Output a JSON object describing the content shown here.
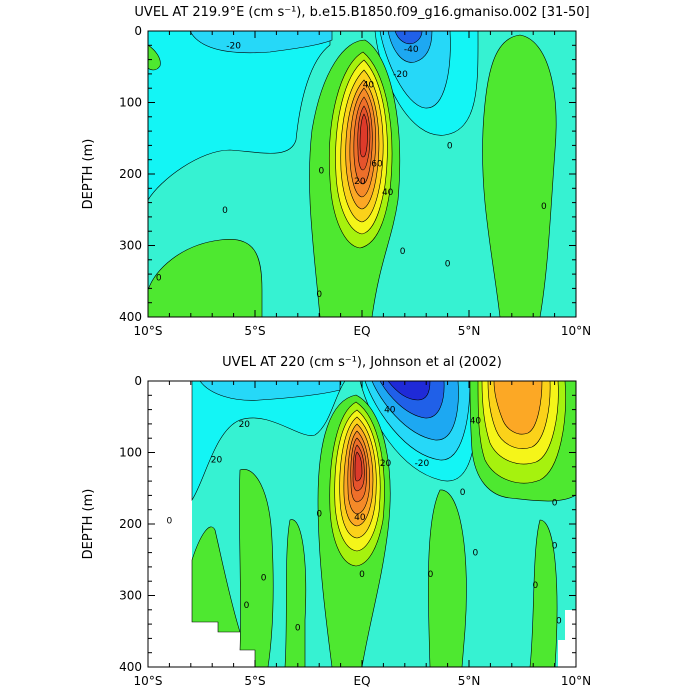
{
  "chart_data": [
    {
      "type": "contour",
      "title": "UVEL AT 219.9°E (cm s⁻¹), b.e15.B1850.f09_g16.gmaniso.002 [31-50]",
      "ylabel": "DEPTH (m)",
      "xlabel": "",
      "x_ticks": [
        "10°S",
        "5°S",
        "EQ",
        "5°N",
        "10°N"
      ],
      "y_ticks": [
        "0",
        "100",
        "200",
        "300",
        "400"
      ],
      "xlim": [
        -10,
        10
      ],
      "ylim": [
        0,
        400
      ],
      "y_inverted": true,
      "contour_interval": 10,
      "contour_labels": [
        {
          "text": "-20",
          "x": -6.0,
          "y": 20
        },
        {
          "text": "-20",
          "x": 1.8,
          "y": 60
        },
        {
          "text": "-40",
          "x": 2.3,
          "y": 25
        },
        {
          "text": "40",
          "x": 0.3,
          "y": 75
        },
        {
          "text": "60",
          "x": 0.7,
          "y": 185
        },
        {
          "text": "20",
          "x": -0.1,
          "y": 210
        },
        {
          "text": "40",
          "x": 1.2,
          "y": 225
        },
        {
          "text": "0",
          "x": -9.5,
          "y": 345
        },
        {
          "text": "0",
          "x": -6.4,
          "y": 250
        },
        {
          "text": "0",
          "x": -1.9,
          "y": 195
        },
        {
          "text": "0",
          "x": -2.0,
          "y": 368
        },
        {
          "text": "0",
          "x": 1.9,
          "y": 308
        },
        {
          "text": "0",
          "x": 4.1,
          "y": 160
        },
        {
          "text": "0",
          "x": 4.0,
          "y": 325
        },
        {
          "text": "0",
          "x": 8.5,
          "y": 245
        }
      ],
      "features": [
        {
          "kind": "max",
          "x": 0.0,
          "y": 125,
          "value": 90
        },
        {
          "kind": "min",
          "x": 2.1,
          "y": 0,
          "value": -50
        },
        {
          "kind": "max",
          "x": 7.5,
          "y": 80,
          "value": 15
        }
      ]
    },
    {
      "type": "contour",
      "title": "UVEL AT 220 (cm s⁻¹), Johnson et al (2002)",
      "ylabel": "DEPTH (m)",
      "xlabel": "",
      "x_ticks": [
        "10°S",
        "5°S",
        "EQ",
        "5°N",
        "10°N"
      ],
      "y_ticks": [
        "0",
        "100",
        "200",
        "300",
        "400"
      ],
      "xlim": [
        -10,
        10
      ],
      "ylim": [
        0,
        400
      ],
      "y_inverted": true,
      "contour_interval": 10,
      "contour_labels": [
        {
          "text": "20",
          "x": -5.5,
          "y": 60
        },
        {
          "text": "20",
          "x": -6.8,
          "y": 110
        },
        {
          "text": "40",
          "x": 1.3,
          "y": 40
        },
        {
          "text": "-20",
          "x": 2.8,
          "y": 115
        },
        {
          "text": "40",
          "x": 5.3,
          "y": 55
        },
        {
          "text": "20",
          "x": 1.1,
          "y": 115
        },
        {
          "text": "40",
          "x": -0.1,
          "y": 190
        },
        {
          "text": "0",
          "x": -9.0,
          "y": 195
        },
        {
          "text": "0",
          "x": -4.6,
          "y": 275
        },
        {
          "text": "0",
          "x": -5.4,
          "y": 313
        },
        {
          "text": "0",
          "x": -3.0,
          "y": 345
        },
        {
          "text": "0",
          "x": -2.0,
          "y": 185
        },
        {
          "text": "0",
          "x": 0.0,
          "y": 270
        },
        {
          "text": "0",
          "x": 3.2,
          "y": 270
        },
        {
          "text": "0",
          "x": 4.7,
          "y": 155
        },
        {
          "text": "0",
          "x": 5.3,
          "y": 240
        },
        {
          "text": "0",
          "x": 8.1,
          "y": 285
        },
        {
          "text": "0",
          "x": 9.0,
          "y": 230
        },
        {
          "text": "0",
          "x": 9.2,
          "y": 335
        },
        {
          "text": "0",
          "x": 9.0,
          "y": 170
        }
      ],
      "features": [
        {
          "kind": "max",
          "x": -0.2,
          "y": 110,
          "value": 100
        },
        {
          "kind": "min",
          "x": 2.7,
          "y": 5,
          "value": -60
        },
        {
          "kind": "max",
          "x": 6.6,
          "y": 60,
          "value": 50
        }
      ]
    }
  ]
}
